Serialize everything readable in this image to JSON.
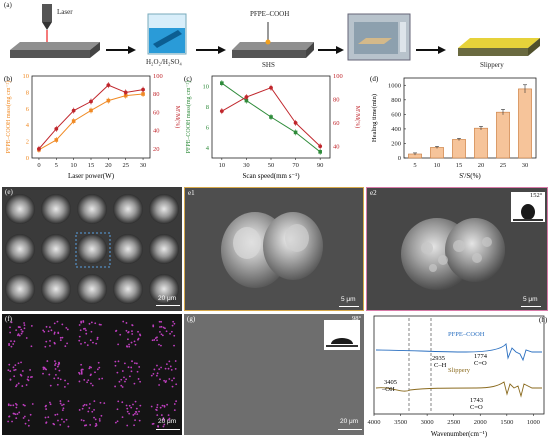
{
  "panel_a": {
    "tag": "(a)",
    "laser_label": "Laser",
    "solution_label": "H₂O₂/H₂SO₄",
    "reagent_label": "PFPE–COOH",
    "shs_label": "SHS",
    "slippery_label": "Slippery"
  },
  "panel_b": {
    "tag": "(b)",
    "ylabel_left": "PFPE–COOH mass(mg cm⁻²)",
    "ylabel_right": "M'/M(%)",
    "xlabel": "Laser power(W)",
    "xticks": [
      "0",
      "5",
      "10",
      "15",
      "20",
      "25",
      "30"
    ],
    "yticks_left": [
      "0",
      "2",
      "4",
      "6",
      "8",
      "10"
    ],
    "yticks_right": [
      "20",
      "40",
      "60",
      "80",
      "100"
    ]
  },
  "panel_c": {
    "tag": "(c)",
    "ylabel_left": "PFPE–COOH mass(mg cm⁻²)",
    "ylabel_right": "M'/M(%)",
    "xlabel": "Scan speed(mm s⁻¹)",
    "xticks": [
      "10",
      "30",
      "50",
      "70",
      "90"
    ],
    "yticks_left": [
      "4",
      "6",
      "8",
      "10"
    ],
    "yticks_right": [
      "40",
      "60",
      "80",
      "100"
    ]
  },
  "panel_d": {
    "tag": "(d)",
    "ylabel": "Healing time(min)",
    "xlabel": "S'/S(%)",
    "xticks": [
      "5",
      "10",
      "15",
      "20",
      "25",
      "30"
    ],
    "yticks": [
      "0",
      "200",
      "400",
      "600",
      "800",
      "1000"
    ]
  },
  "panel_e": {
    "tag": "(e)",
    "scale": "20 μm"
  },
  "panel_e1": {
    "tag": "e1",
    "scale": "5 μm"
  },
  "panel_e2": {
    "tag": "e2",
    "scale": "5 μm",
    "angle": "152°"
  },
  "panel_f": {
    "tag": "(f)",
    "scale": "20 μm"
  },
  "panel_g": {
    "tag": "(g)",
    "scale": "20 μm",
    "angle": "98°"
  },
  "panel_h": {
    "tag": "(h)",
    "xlabel": "Wavenumber(cm⁻¹)",
    "xticks": [
      "4000",
      "3500",
      "3000",
      "2500",
      "2000",
      "1500",
      "1000"
    ],
    "series_top": "PFPE–COOH",
    "series_bottom": "Slippery",
    "ann_2935": "2935",
    "ann_ch": "C–H",
    "ann_1774": "1774",
    "ann_co1": "C=O",
    "ann_3405": "3405",
    "ann_oh": "–OH",
    "ann_1743": "1743",
    "ann_co2": "C=O"
  },
  "colors": {
    "mass_b": "#f08a24",
    "ratio": "#c0262c",
    "mass_c": "#2e8b3a",
    "bar": "#f6c49a",
    "ftir_top": "#2a6fc0",
    "ftir_bottom": "#8a6a1e"
  },
  "chart_data": [
    {
      "type": "line",
      "panel": "b",
      "x": [
        0,
        5,
        10,
        15,
        20,
        25,
        30
      ],
      "series": [
        {
          "name": "PFPE–COOH mass",
          "axis": "left",
          "values": [
            1.0,
            2.2,
            4.5,
            5.8,
            7.0,
            7.6,
            7.8
          ]
        },
        {
          "name": "M'/M",
          "axis": "right",
          "values": [
            20,
            42,
            62,
            72,
            90,
            82,
            85
          ]
        }
      ],
      "xlabel": "Laser power(W)",
      "ylim_left": [
        0,
        10
      ],
      "ylim_right": [
        10,
        100
      ]
    },
    {
      "type": "line",
      "panel": "c",
      "x": [
        10,
        30,
        50,
        70,
        90
      ],
      "series": [
        {
          "name": "PFPE–COOH mass",
          "axis": "left",
          "values": [
            10.3,
            8.6,
            7.0,
            5.5,
            3.6
          ]
        },
        {
          "name": "M'/M",
          "axis": "right",
          "values": [
            70,
            82,
            90,
            60,
            40
          ]
        }
      ],
      "xlabel": "Scan speed(mm s⁻¹)",
      "ylim_left": [
        3,
        11
      ],
      "ylim_right": [
        30,
        100
      ]
    },
    {
      "type": "bar",
      "panel": "d",
      "categories": [
        "5",
        "10",
        "15",
        "20",
        "25",
        "30"
      ],
      "values": [
        55,
        145,
        255,
        410,
        630,
        950
      ],
      "xlabel": "S'/S(%)",
      "ylabel": "Healing time(min)",
      "ylim": [
        0,
        1100
      ]
    }
  ]
}
